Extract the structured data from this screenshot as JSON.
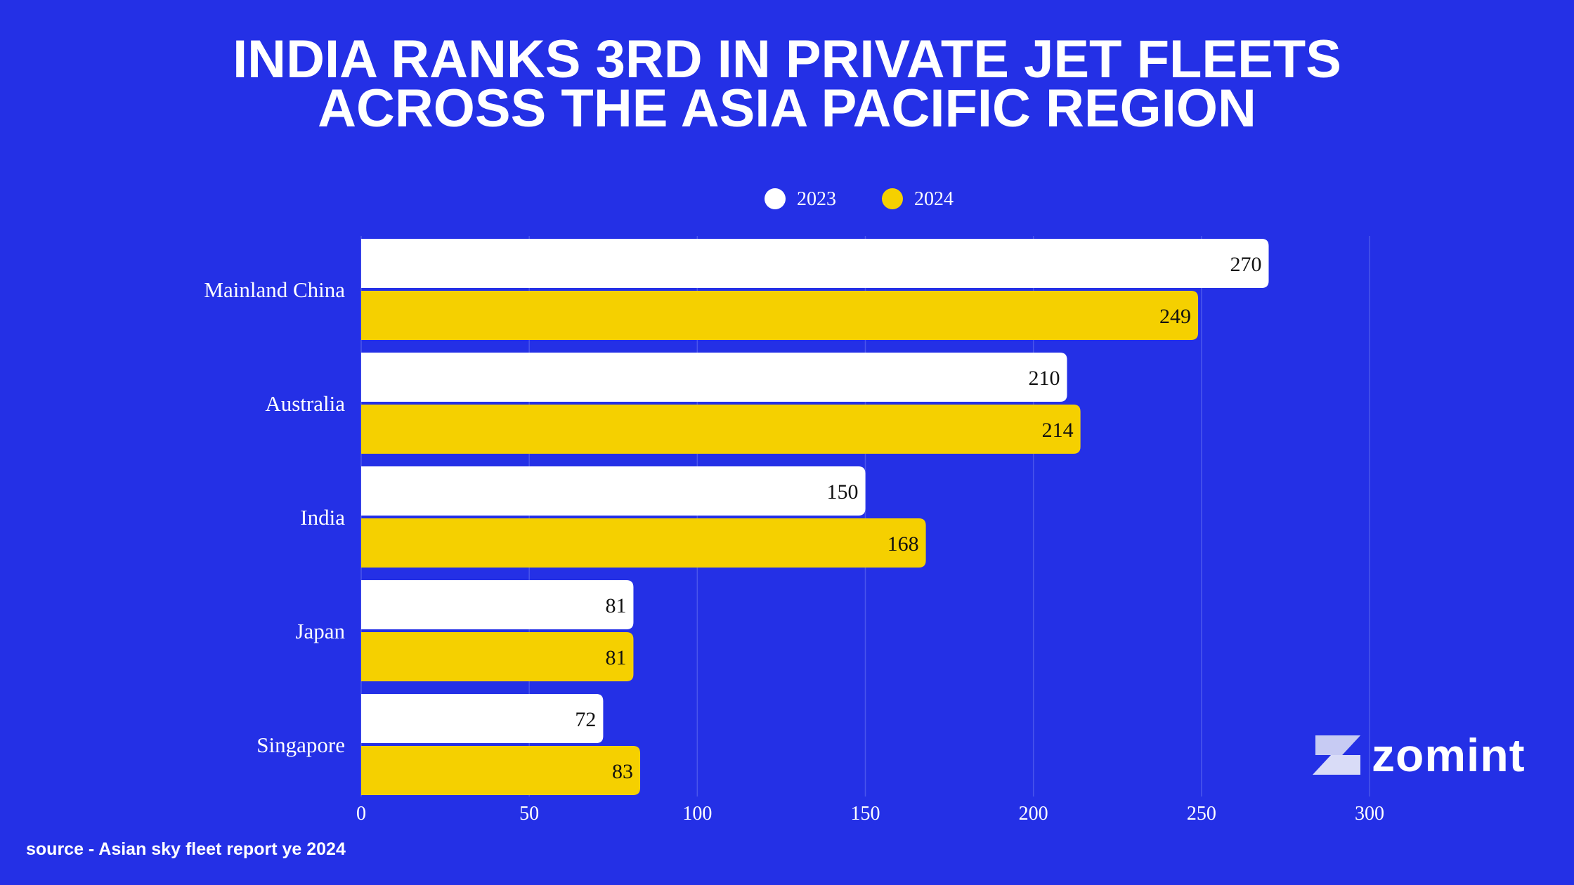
{
  "header": {
    "title_line1": "INDIA RANKS 3RD IN PRIVATE JET FLEETS",
    "title_line2": "ACROSS THE ASIA PACIFIC REGION"
  },
  "footer": {
    "source": "source - Asian sky fleet report ye 2024",
    "brand": "zomint"
  },
  "colors": {
    "background": "#2430E6",
    "series_2023": "#FFFFFF",
    "series_2024": "#F5D000",
    "grid": "#4A55EC"
  },
  "chart_data": {
    "type": "bar",
    "orientation": "horizontal",
    "title": "INDIA RANKS 3RD IN PRIVATE JET FLEETS ACROSS THE ASIA PACIFIC REGION",
    "categories": [
      "Mainland China",
      "Australia",
      "India",
      "Japan",
      "Singapore"
    ],
    "series": [
      {
        "name": "2023",
        "values": [
          270,
          210,
          150,
          81,
          72
        ]
      },
      {
        "name": "2024",
        "values": [
          249,
          214,
          168,
          81,
          83
        ]
      }
    ],
    "xlim": [
      0,
      300
    ],
    "xticks": [
      0,
      50,
      100,
      150,
      200,
      250,
      300
    ],
    "xlabel": "",
    "ylabel": "",
    "grid": true,
    "legend_position": "top-center",
    "data_labels": true
  }
}
